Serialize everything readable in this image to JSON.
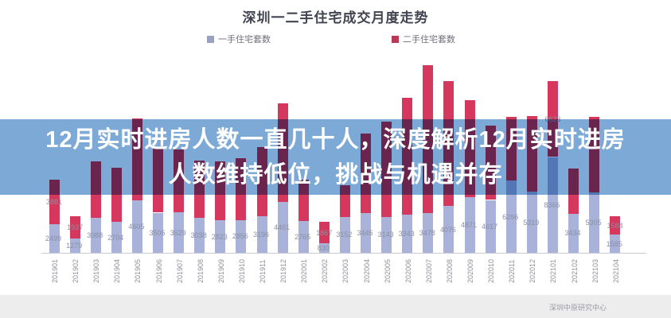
{
  "page": {
    "title": "深圳一二手住宅成交月度走势",
    "source": "深圳中原研究中心"
  },
  "legend": {
    "items": [
      {
        "label": "一手住宅套数",
        "color": "#9aa2c2"
      },
      {
        "label": "二手住宅套数",
        "color": "#b83a55"
      }
    ]
  },
  "banner": {
    "line1": "12月实时进房人数一直几十人，深度解析12月实时进房",
    "line2": "人数维持低位，挑战与机遇并存",
    "color": "#7da9d6"
  },
  "chart_data": {
    "type": "bar",
    "stacked": true,
    "title": "深圳一二手住宅成交月度走势",
    "legend_position": "top",
    "grid": false,
    "ylim": [
      0,
      17000
    ],
    "categories": [
      "201901",
      "201902",
      "201903",
      "201904",
      "201905",
      "201906",
      "201907",
      "201908",
      "201909",
      "201910",
      "201911",
      "201912",
      "202001",
      "202002",
      "202003",
      "202004",
      "202005",
      "202006",
      "202007",
      "202008",
      "202009",
      "202010",
      "202011",
      "202012",
      "202101",
      "202102",
      "202103",
      "202104"
    ],
    "series": [
      {
        "name": "一手住宅套数",
        "color": "#a9b2d8",
        "values": [
          2499,
          1279,
          3088,
          2704,
          4605,
          3506,
          3529,
          3038,
          2823,
          2856,
          3196,
          4461,
          2765,
          830,
          3152,
          3446,
          3143,
          3343,
          3478,
          4076,
          4871,
          4617,
          6296,
          5319,
          8366,
          3434,
          5305,
          1585
        ],
        "label_indices": "all"
      },
      {
        "name": "二手住宅套数",
        "color": "#d6375c",
        "values": [
          3881,
          1937,
          4931,
          4720,
          7153,
          5628,
          5466,
          5009,
          5173,
          5404,
          6006,
          8590,
          3609,
          1867,
          2748,
          7002,
          8307,
          10190,
          12900,
          10914,
          8454,
          6504,
          5571,
          6617,
          6623,
          3921,
          6565,
          1584
        ],
        "label_indices": [
          0,
          1,
          13,
          24,
          27
        ],
        "note": "values for segments hidden behind the headline banner are estimated from bar heights"
      }
    ]
  }
}
